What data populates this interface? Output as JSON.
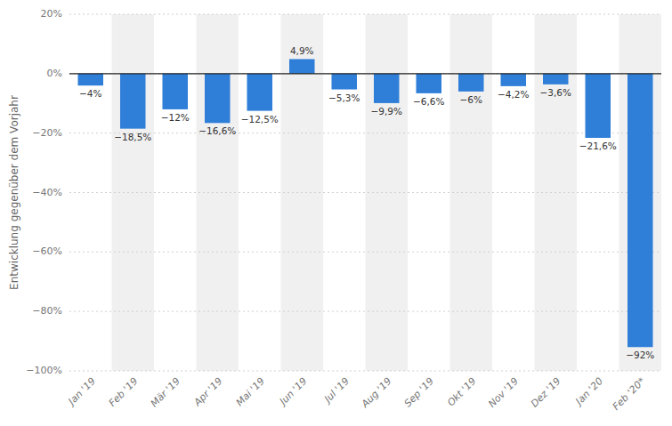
{
  "chart_data": {
    "type": "bar",
    "ylabel": "Entwicklung gegenüber dem Vorjahr",
    "categories": [
      "Jan '19",
      "Feb '19",
      "Mär '19",
      "Apr '19",
      "Mai '19",
      "Jun '19",
      "Jul '19",
      "Aug '19",
      "Sep '19",
      "Okt '19",
      "Nov '19",
      "Dez '19",
      "Jan '20",
      "Feb '20*"
    ],
    "values": [
      -4.0,
      -18.5,
      -12.0,
      -16.6,
      -12.5,
      4.9,
      -5.3,
      -9.9,
      -6.6,
      -6.0,
      -4.2,
      -3.6,
      -21.6,
      -92.0
    ],
    "value_labels": [
      "−4%",
      "−18,5%",
      "−12%",
      "−16,6%",
      "−12,5%",
      "4,9%",
      "−5,3%",
      "−9,9%",
      "−6,6%",
      "−6%",
      "−4,2%",
      "−3,6%",
      "−21,6%",
      "−92%"
    ],
    "data_labels": true,
    "color": "#2f7ed8",
    "ylim": [
      -100,
      20
    ],
    "yticks": [
      {
        "value": -100,
        "label": "−100%"
      },
      {
        "value": -80,
        "label": "−80%"
      },
      {
        "value": -60,
        "label": "−60%"
      },
      {
        "value": -40,
        "label": "−40%"
      },
      {
        "value": -20,
        "label": "−20%"
      },
      {
        "value": 0,
        "label": "0%"
      },
      {
        "value": 20,
        "label": "20%"
      }
    ],
    "grid": true
  }
}
